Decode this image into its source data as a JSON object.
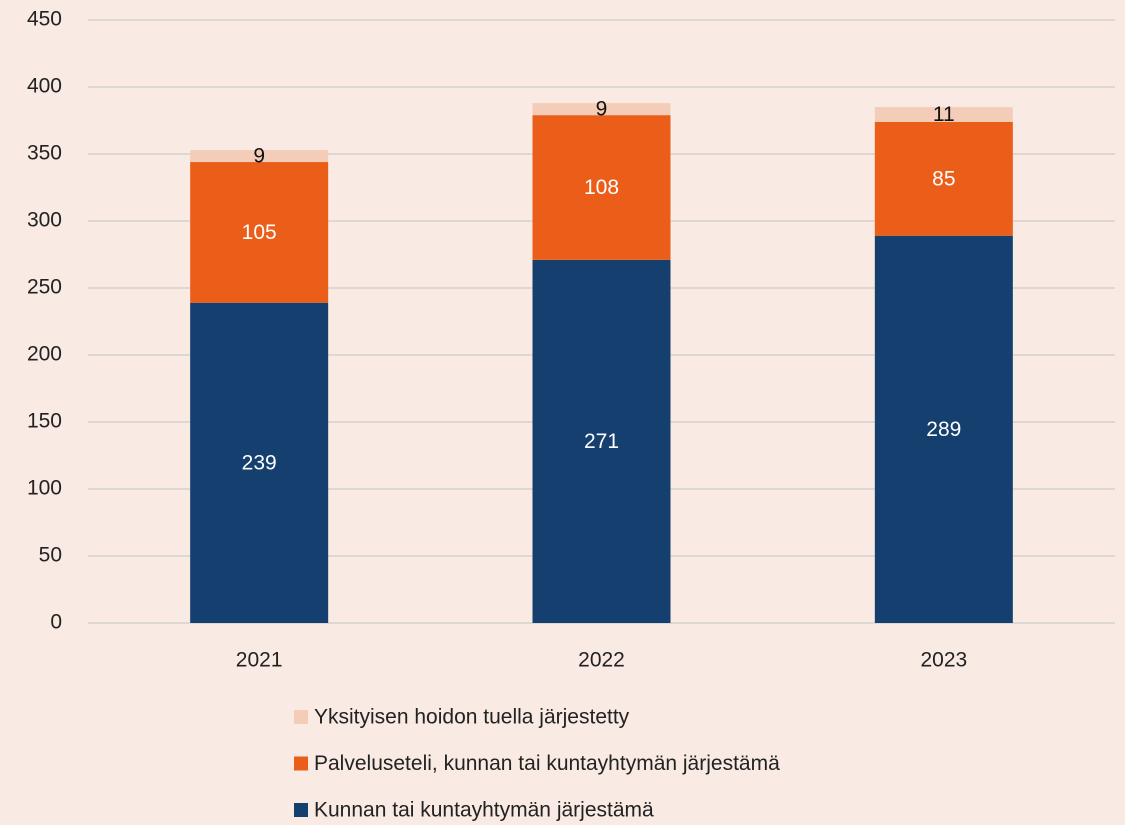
{
  "chart_data": {
    "type": "stacked_bar",
    "categories": [
      "2021",
      "2022",
      "2023"
    ],
    "series": [
      {
        "name": "Kunnan tai kuntayhtymän järjestämä",
        "color": "#143f6e",
        "values": [
          239,
          271,
          289
        ]
      },
      {
        "name": "Palveluseteli, kunnan tai kuntayhtymän järjestämä",
        "color": "#eb5e1a",
        "values": [
          105,
          108,
          85
        ]
      },
      {
        "name": "Yksityisen hoidon tuella järjestetty",
        "color": "#f3cdb7",
        "values": [
          9,
          9,
          11
        ]
      }
    ],
    "ylim": [
      0,
      450
    ],
    "yticks": [
      0,
      50,
      100,
      150,
      200,
      250,
      300,
      350,
      400,
      450
    ],
    "grid": true,
    "legend": "bottom"
  }
}
